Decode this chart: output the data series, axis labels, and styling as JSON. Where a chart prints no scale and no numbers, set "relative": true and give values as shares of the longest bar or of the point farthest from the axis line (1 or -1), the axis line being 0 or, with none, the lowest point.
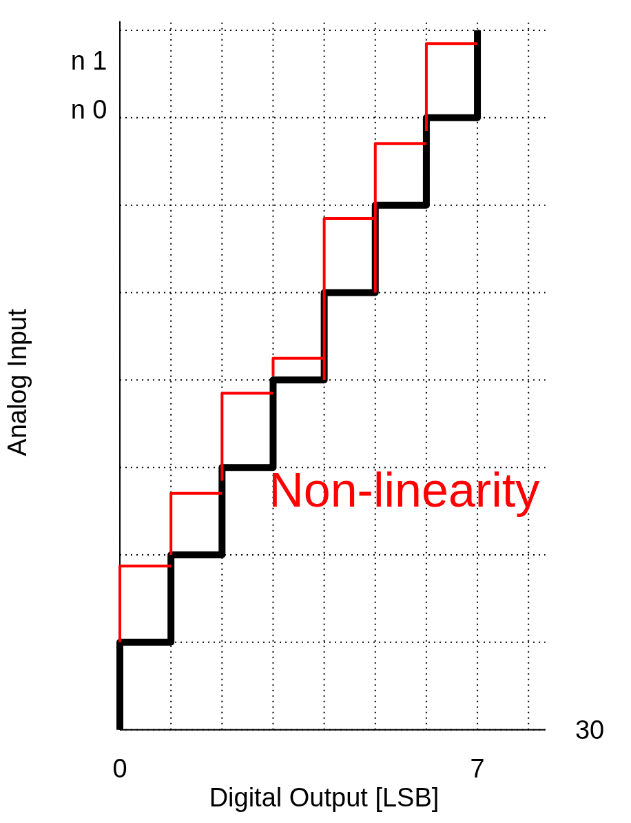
{
  "chart_data": {
    "type": "line",
    "xlabel": "Digital Output [LSB]",
    "ylabel": "Analog Input",
    "relative": true,
    "xlim": [
      0,
      8.33
    ],
    "xticks": [
      0,
      {
        "value": 1,
        "label": null
      },
      {
        "value": 2,
        "label": null
      },
      {
        "value": 3,
        "label": null
      },
      {
        "value": 4,
        "label": null
      },
      {
        "value": 5,
        "label": null
      },
      {
        "value": 6,
        "label": null
      },
      7,
      {
        "value": 8,
        "label": null
      }
    ],
    "grid": true,
    "line_style": "solid",
    "annotations": [
      "Non-linearity",
      "n 1",
      "n 0",
      "30"
    ],
    "series": [
      {
        "color": "#000000",
        "x": [
          0,
          0,
          1,
          1,
          2,
          2,
          3,
          3,
          4,
          4,
          5,
          5,
          6,
          6,
          7,
          7
        ],
        "values": [
          0,
          0.125,
          0.125,
          0.25,
          0.25,
          0.375,
          0.375,
          0.5,
          0.5,
          0.625,
          0.625,
          0.75,
          0.75,
          0.875,
          0.875,
          1
        ]
      },
      {
        "color": "#ff0000",
        "x": [
          0,
          0,
          1,
          null,
          1,
          1,
          2,
          null,
          2,
          2,
          3,
          null,
          3,
          3,
          4,
          null,
          4,
          4,
          5,
          null,
          5,
          5,
          6,
          null,
          6,
          6,
          7
        ],
        "values": [
          0.125,
          0.234,
          0.234,
          null,
          0.25,
          0.338,
          0.338,
          null,
          0.356,
          0.481,
          0.481,
          null,
          0.506,
          0.531,
          0.531,
          null,
          0.5,
          0.731,
          0.731,
          null,
          0.625,
          0.838,
          0.838,
          null,
          0.856,
          0.981,
          0.981
        ]
      }
    ]
  }
}
